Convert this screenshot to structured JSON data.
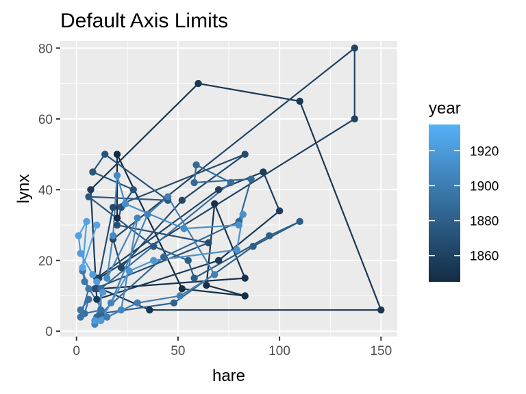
{
  "chart_data": {
    "type": "line",
    "title": "Default Axis Limits",
    "xlabel": "hare",
    "ylabel": "lynx",
    "xlim": [
      -8,
      158
    ],
    "ylim": [
      -1.5,
      82
    ],
    "x_ticks": [
      0,
      50,
      100,
      150
    ],
    "y_ticks": [
      0,
      20,
      40,
      60,
      80
    ],
    "grid": true,
    "legend": {
      "title": "year",
      "position": "right",
      "type": "colorbar",
      "range": [
        1845,
        1935
      ],
      "ticks": [
        1860,
        1880,
        1900,
        1920
      ],
      "low_color": "#132B43",
      "high_color": "#56B1F7"
    },
    "year": [
      1845,
      1846,
      1847,
      1848,
      1849,
      1850,
      1851,
      1852,
      1853,
      1854,
      1855,
      1856,
      1857,
      1858,
      1859,
      1860,
      1861,
      1862,
      1863,
      1864,
      1865,
      1866,
      1867,
      1868,
      1869,
      1870,
      1871,
      1872,
      1873,
      1874,
      1875,
      1876,
      1877,
      1878,
      1879,
      1880,
      1881,
      1882,
      1883,
      1884,
      1885,
      1886,
      1887,
      1888,
      1889,
      1890,
      1891,
      1892,
      1893,
      1894,
      1895,
      1896,
      1897,
      1898,
      1899,
      1900,
      1901,
      1902,
      1903,
      1904,
      1905,
      1906,
      1907,
      1908,
      1909,
      1910,
      1911,
      1912,
      1913,
      1914,
      1915,
      1916,
      1917,
      1918,
      1919,
      1920,
      1921,
      1922,
      1923,
      1924,
      1925,
      1926,
      1927,
      1928,
      1929,
      1930,
      1931,
      1932,
      1933,
      1934,
      1935
    ],
    "hare": [
      20,
      20,
      52,
      83,
      64,
      68,
      83,
      12,
      36,
      150,
      110,
      60,
      7,
      10,
      70,
      100,
      92,
      70,
      10,
      11,
      137,
      137,
      18,
      22,
      52,
      83,
      18,
      10,
      9,
      65,
      20,
      22,
      28,
      8,
      14,
      45,
      6,
      38,
      55,
      58,
      95,
      110,
      87,
      48,
      12,
      10,
      43,
      80,
      86,
      58,
      59,
      76,
      12,
      12,
      4,
      6,
      2,
      2,
      6,
      3,
      4,
      15,
      30,
      51,
      68,
      45,
      35,
      17,
      9,
      22,
      30,
      15,
      18,
      20,
      24,
      53,
      80,
      82,
      79,
      38,
      26,
      12,
      9,
      13,
      10,
      8,
      2,
      1,
      5,
      3,
      10
    ],
    "lynx": [
      32,
      50,
      12,
      10,
      13,
      36,
      15,
      12,
      6,
      6,
      65,
      70,
      40,
      9,
      20,
      34,
      45,
      40,
      15,
      15,
      60,
      80,
      26,
      18,
      37,
      50,
      35,
      12,
      12,
      25,
      30,
      35,
      40,
      45,
      50,
      37,
      38,
      24,
      20,
      15,
      27,
      31,
      24,
      8,
      5,
      4,
      21,
      31,
      43,
      42,
      47,
      42,
      12,
      6,
      5,
      9,
      6,
      4,
      12,
      17,
      14,
      4,
      8,
      10,
      16,
      38,
      33,
      8,
      2,
      6,
      32,
      15,
      27,
      44,
      36,
      29,
      30,
      33,
      23,
      20,
      17,
      3,
      3,
      11,
      14,
      16,
      22,
      27,
      31,
      18,
      30
    ],
    "colors": [
      "#132B43",
      "#152E47",
      "#16314B",
      "#18344F",
      "#1A3753",
      "#1B3A58",
      "#1D3E5C",
      "#1F4160",
      "#214465",
      "#224769",
      "#244B6E",
      "#264E72",
      "#285177",
      "#29557B",
      "#2B5880",
      "#2D5C84",
      "#2F5F89",
      "#31638E",
      "#336692",
      "#356A97",
      "#376D9C",
      "#3971A1",
      "#3B74A6",
      "#3D78AB",
      "#3F7BAF",
      "#417FB4",
      "#4382B9",
      "#4586BE",
      "#478AC3",
      "#498DC8",
      "#4B91CD",
      "#4E95D2",
      "#5098D7",
      "#529CDC",
      "#54A0E2",
      "#56A4E7"
    ]
  }
}
